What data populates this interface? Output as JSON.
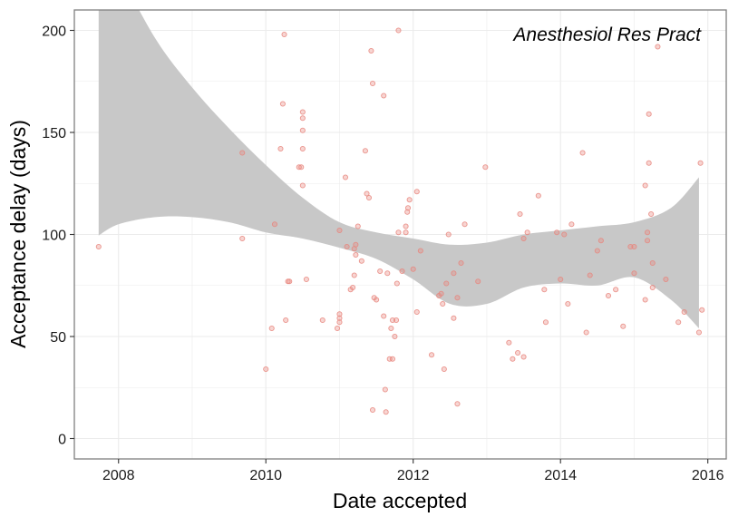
{
  "chart_data": {
    "type": "scatter",
    "annotation": "Anesthesiol Res Pract",
    "xlabel": "Date accepted",
    "ylabel": "Acceptance delay (days)",
    "xlim": [
      2007.4,
      2016.25
    ],
    "ylim": [
      -10,
      210
    ],
    "x_ticks": [
      2008,
      2010,
      2012,
      2014,
      2016
    ],
    "x_tick_labels": [
      "2008",
      "2010",
      "2012",
      "2014",
      "2016"
    ],
    "y_ticks": [
      0,
      50,
      100,
      150,
      200
    ],
    "y_tick_labels": [
      "0",
      "50",
      "100",
      "150",
      "200"
    ],
    "grid": true,
    "colors": {
      "point": "#e8867e",
      "ribbon": "#c8c8c8",
      "grid": "#ebebeb",
      "border": "#7f7f7f"
    },
    "points": [
      [
        2007.73,
        94
      ],
      [
        2009.68,
        140
      ],
      [
        2009.68,
        98
      ],
      [
        2010.0,
        34
      ],
      [
        2010.08,
        54
      ],
      [
        2010.12,
        105
      ],
      [
        2010.2,
        142
      ],
      [
        2010.23,
        164
      ],
      [
        2010.25,
        198
      ],
      [
        2010.27,
        58
      ],
      [
        2010.3,
        77
      ],
      [
        2010.32,
        77
      ],
      [
        2010.45,
        133
      ],
      [
        2010.48,
        133
      ],
      [
        2010.5,
        160
      ],
      [
        2010.5,
        157
      ],
      [
        2010.5,
        151
      ],
      [
        2010.5,
        142
      ],
      [
        2010.5,
        124
      ],
      [
        2010.55,
        78
      ],
      [
        2010.77,
        58
      ],
      [
        2010.97,
        54
      ],
      [
        2011.0,
        57
      ],
      [
        2011.0,
        59
      ],
      [
        2011.0,
        61
      ],
      [
        2011.0,
        102
      ],
      [
        2011.08,
        128
      ],
      [
        2011.1,
        94
      ],
      [
        2011.15,
        73
      ],
      [
        2011.18,
        74
      ],
      [
        2011.2,
        80
      ],
      [
        2011.2,
        93
      ],
      [
        2011.22,
        95
      ],
      [
        2011.22,
        90
      ],
      [
        2011.25,
        104
      ],
      [
        2011.3,
        87
      ],
      [
        2011.35,
        141
      ],
      [
        2011.37,
        120
      ],
      [
        2011.4,
        118
      ],
      [
        2011.43,
        190
      ],
      [
        2011.45,
        174
      ],
      [
        2011.45,
        14
      ],
      [
        2011.47,
        69
      ],
      [
        2011.5,
        68
      ],
      [
        2011.55,
        82
      ],
      [
        2011.6,
        60
      ],
      [
        2011.6,
        168
      ],
      [
        2011.62,
        24
      ],
      [
        2011.63,
        13
      ],
      [
        2011.65,
        81
      ],
      [
        2011.68,
        39
      ],
      [
        2011.7,
        54
      ],
      [
        2011.72,
        39
      ],
      [
        2011.72,
        58
      ],
      [
        2011.75,
        50
      ],
      [
        2011.77,
        58
      ],
      [
        2011.78,
        76
      ],
      [
        2011.8,
        200
      ],
      [
        2011.8,
        101
      ],
      [
        2011.85,
        82
      ],
      [
        2011.9,
        101
      ],
      [
        2011.9,
        104
      ],
      [
        2011.92,
        111
      ],
      [
        2011.93,
        113
      ],
      [
        2011.95,
        117
      ],
      [
        2012.0,
        83
      ],
      [
        2012.05,
        121
      ],
      [
        2012.05,
        62
      ],
      [
        2012.1,
        92
      ],
      [
        2012.25,
        41
      ],
      [
        2012.35,
        70
      ],
      [
        2012.38,
        71
      ],
      [
        2012.4,
        66
      ],
      [
        2012.42,
        34
      ],
      [
        2012.45,
        76
      ],
      [
        2012.48,
        100
      ],
      [
        2012.55,
        81
      ],
      [
        2012.55,
        59
      ],
      [
        2012.6,
        17
      ],
      [
        2012.6,
        69
      ],
      [
        2012.65,
        86
      ],
      [
        2012.7,
        105
      ],
      [
        2012.88,
        77
      ],
      [
        2012.98,
        133
      ],
      [
        2013.3,
        47
      ],
      [
        2013.35,
        39
      ],
      [
        2013.42,
        42
      ],
      [
        2013.45,
        110
      ],
      [
        2013.5,
        98
      ],
      [
        2013.5,
        40
      ],
      [
        2013.55,
        101
      ],
      [
        2013.7,
        119
      ],
      [
        2013.78,
        73
      ],
      [
        2013.8,
        57
      ],
      [
        2013.95,
        101
      ],
      [
        2014.0,
        78
      ],
      [
        2014.05,
        100
      ],
      [
        2014.1,
        66
      ],
      [
        2014.15,
        105
      ],
      [
        2014.3,
        140
      ],
      [
        2014.35,
        52
      ],
      [
        2014.4,
        80
      ],
      [
        2014.5,
        92
      ],
      [
        2014.55,
        97
      ],
      [
        2014.65,
        70
      ],
      [
        2014.75,
        73
      ],
      [
        2014.85,
        55
      ],
      [
        2014.95,
        94
      ],
      [
        2015.0,
        94
      ],
      [
        2015.0,
        81
      ],
      [
        2015.15,
        68
      ],
      [
        2015.15,
        124
      ],
      [
        2015.18,
        101
      ],
      [
        2015.18,
        97
      ],
      [
        2015.2,
        159
      ],
      [
        2015.2,
        135
      ],
      [
        2015.23,
        110
      ],
      [
        2015.25,
        86
      ],
      [
        2015.25,
        74
      ],
      [
        2015.32,
        192
      ],
      [
        2015.43,
        78
      ],
      [
        2015.6,
        57
      ],
      [
        2015.68,
        62
      ],
      [
        2015.88,
        52
      ],
      [
        2015.9,
        135
      ],
      [
        2015.92,
        63
      ]
    ],
    "smooth_band": {
      "x": [
        2007.73,
        2008.0,
        2008.5,
        2009.0,
        2009.5,
        2010.0,
        2010.5,
        2011.0,
        2011.5,
        2012.0,
        2012.5,
        2013.0,
        2013.5,
        2014.0,
        2014.5,
        2015.0,
        2015.5,
        2015.88
      ],
      "lower": [
        99.5,
        105,
        108.5,
        108.5,
        106,
        101,
        98,
        93.5,
        88,
        78,
        66,
        66,
        74,
        76,
        75,
        79,
        68,
        54
      ],
      "upper": [
        255,
        230,
        196,
        172,
        152,
        134,
        118,
        106,
        101,
        98,
        95,
        96,
        100,
        102,
        104,
        106,
        113,
        128
      ]
    }
  }
}
